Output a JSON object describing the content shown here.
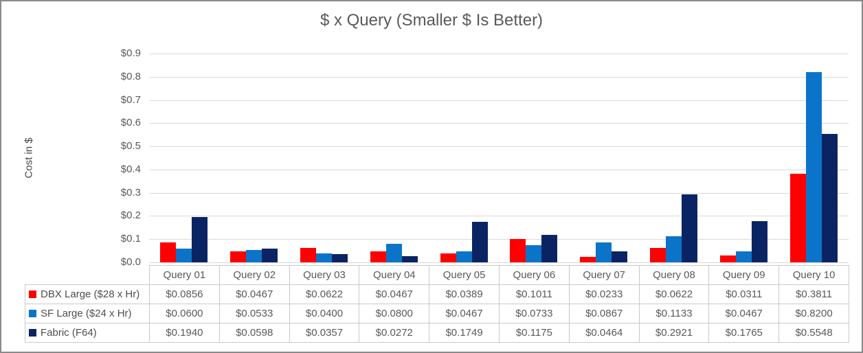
{
  "chart_data": {
    "type": "bar",
    "title": "$ x Query (Smaller $ Is Better)",
    "xlabel": "",
    "ylabel": "Cost in $",
    "ylim": [
      0,
      0.9
    ],
    "ytick_step": 0.1,
    "yticks": [
      "$0.0",
      "$0.1",
      "$0.2",
      "$0.3",
      "$0.4",
      "$0.5",
      "$0.6",
      "$0.7",
      "$0.8",
      "$0.9"
    ],
    "grid": "horizontal",
    "legend_position": "table-left",
    "value_prefix": "$",
    "value_decimals": 4,
    "categories": [
      "Query 01",
      "Query 02",
      "Query 03",
      "Query 04",
      "Query 05",
      "Query 06",
      "Query 07",
      "Query 08",
      "Query 09",
      "Query 10"
    ],
    "series": [
      {
        "name": "DBX Large ($28 x Hr)",
        "color": "#fe0000",
        "values": [
          0.0856,
          0.0467,
          0.0622,
          0.0467,
          0.0389,
          0.1011,
          0.0233,
          0.0622,
          0.0311,
          0.3811
        ]
      },
      {
        "name": "SF Large ($24 x Hr)",
        "color": "#0b74c9",
        "values": [
          0.06,
          0.0533,
          0.04,
          0.08,
          0.0467,
          0.0733,
          0.0867,
          0.1133,
          0.0467,
          0.82
        ]
      },
      {
        "name": "Fabric (F64)",
        "color": "#0a2463",
        "values": [
          0.194,
          0.0598,
          0.0357,
          0.0272,
          0.1749,
          0.1175,
          0.0464,
          0.2921,
          0.1765,
          0.5548
        ]
      }
    ]
  },
  "colors": {
    "grid": "#d9d9d9",
    "text": "#595959",
    "table_border": "#c9c9c9"
  }
}
